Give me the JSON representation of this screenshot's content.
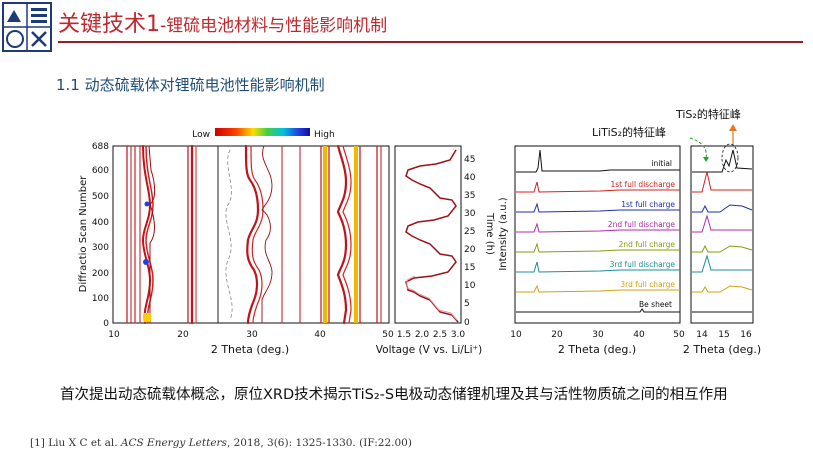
{
  "header": {
    "title_main": "关键技术1",
    "title_sub": "-锂硫电池材料与性能影响机制",
    "section": "1.1 动态硫载体对锂硫电池性能影响机制"
  },
  "colors": {
    "title": "#c0282e",
    "section": "#1f4e79",
    "accent": "#9b1c22"
  },
  "figure": {
    "colorbar_low": "Low",
    "colorbar_high": "High",
    "panel_a": {
      "ylabel": "Diffractio Scan Number",
      "yticks": [
        "688",
        "600",
        "500",
        "400",
        "300",
        "200",
        "100",
        "0"
      ],
      "xticks": [
        "10",
        "20",
        "30",
        "40",
        "50"
      ],
      "xlabel": "2 Theta (deg.)"
    },
    "panel_b": {
      "xlabel": "Voltage (V vs. Li/Li⁺)",
      "xticks": [
        "1.5",
        "2.0",
        "2.5",
        "3.0"
      ],
      "ylabel": "Time (h)",
      "yticks": [
        "45",
        "40",
        "35",
        "30",
        "25",
        "20",
        "15",
        "10",
        "5",
        "0"
      ]
    },
    "panel_c": {
      "ylabel": "Intensity (a.u.)",
      "xticks": [
        "10",
        "20",
        "30",
        "40",
        "50"
      ],
      "xlabel": "2 Theta (deg.)",
      "curves": [
        {
          "label": "initial",
          "color": "#111111"
        },
        {
          "label": "1st full discharge",
          "color": "#d42020"
        },
        {
          "label": "1st full charge",
          "color": "#1f2fb0"
        },
        {
          "label": "2nd full discharge",
          "color": "#b02aa8"
        },
        {
          "label": "2nd full charge",
          "color": "#8a9a10"
        },
        {
          "label": "3rd full discharge",
          "color": "#1a8f95"
        },
        {
          "label": "3rd full charge",
          "color": "#d4a010"
        },
        {
          "label": "Be sheet",
          "color": "#111111"
        }
      ]
    },
    "panel_d": {
      "xticks": [
        "14",
        "15",
        "16"
      ],
      "xlabel": "2 Theta (deg.)"
    },
    "annotations": {
      "litis2": "LiTiS₂的特征峰",
      "tis2": "TiS₂的特征峰"
    }
  },
  "summary": "首次提出动态硫载体概念，原位XRD技术揭示TiS₂-S电极动态储锂机理及其与活性物质硫之间的相互作用",
  "reference": {
    "prefix": "[1] Liu X C et al. ",
    "journal": "ACS Energy Letters",
    "rest": ", 2018, 3(6): 1325-1330.  (IF:22.00)"
  }
}
